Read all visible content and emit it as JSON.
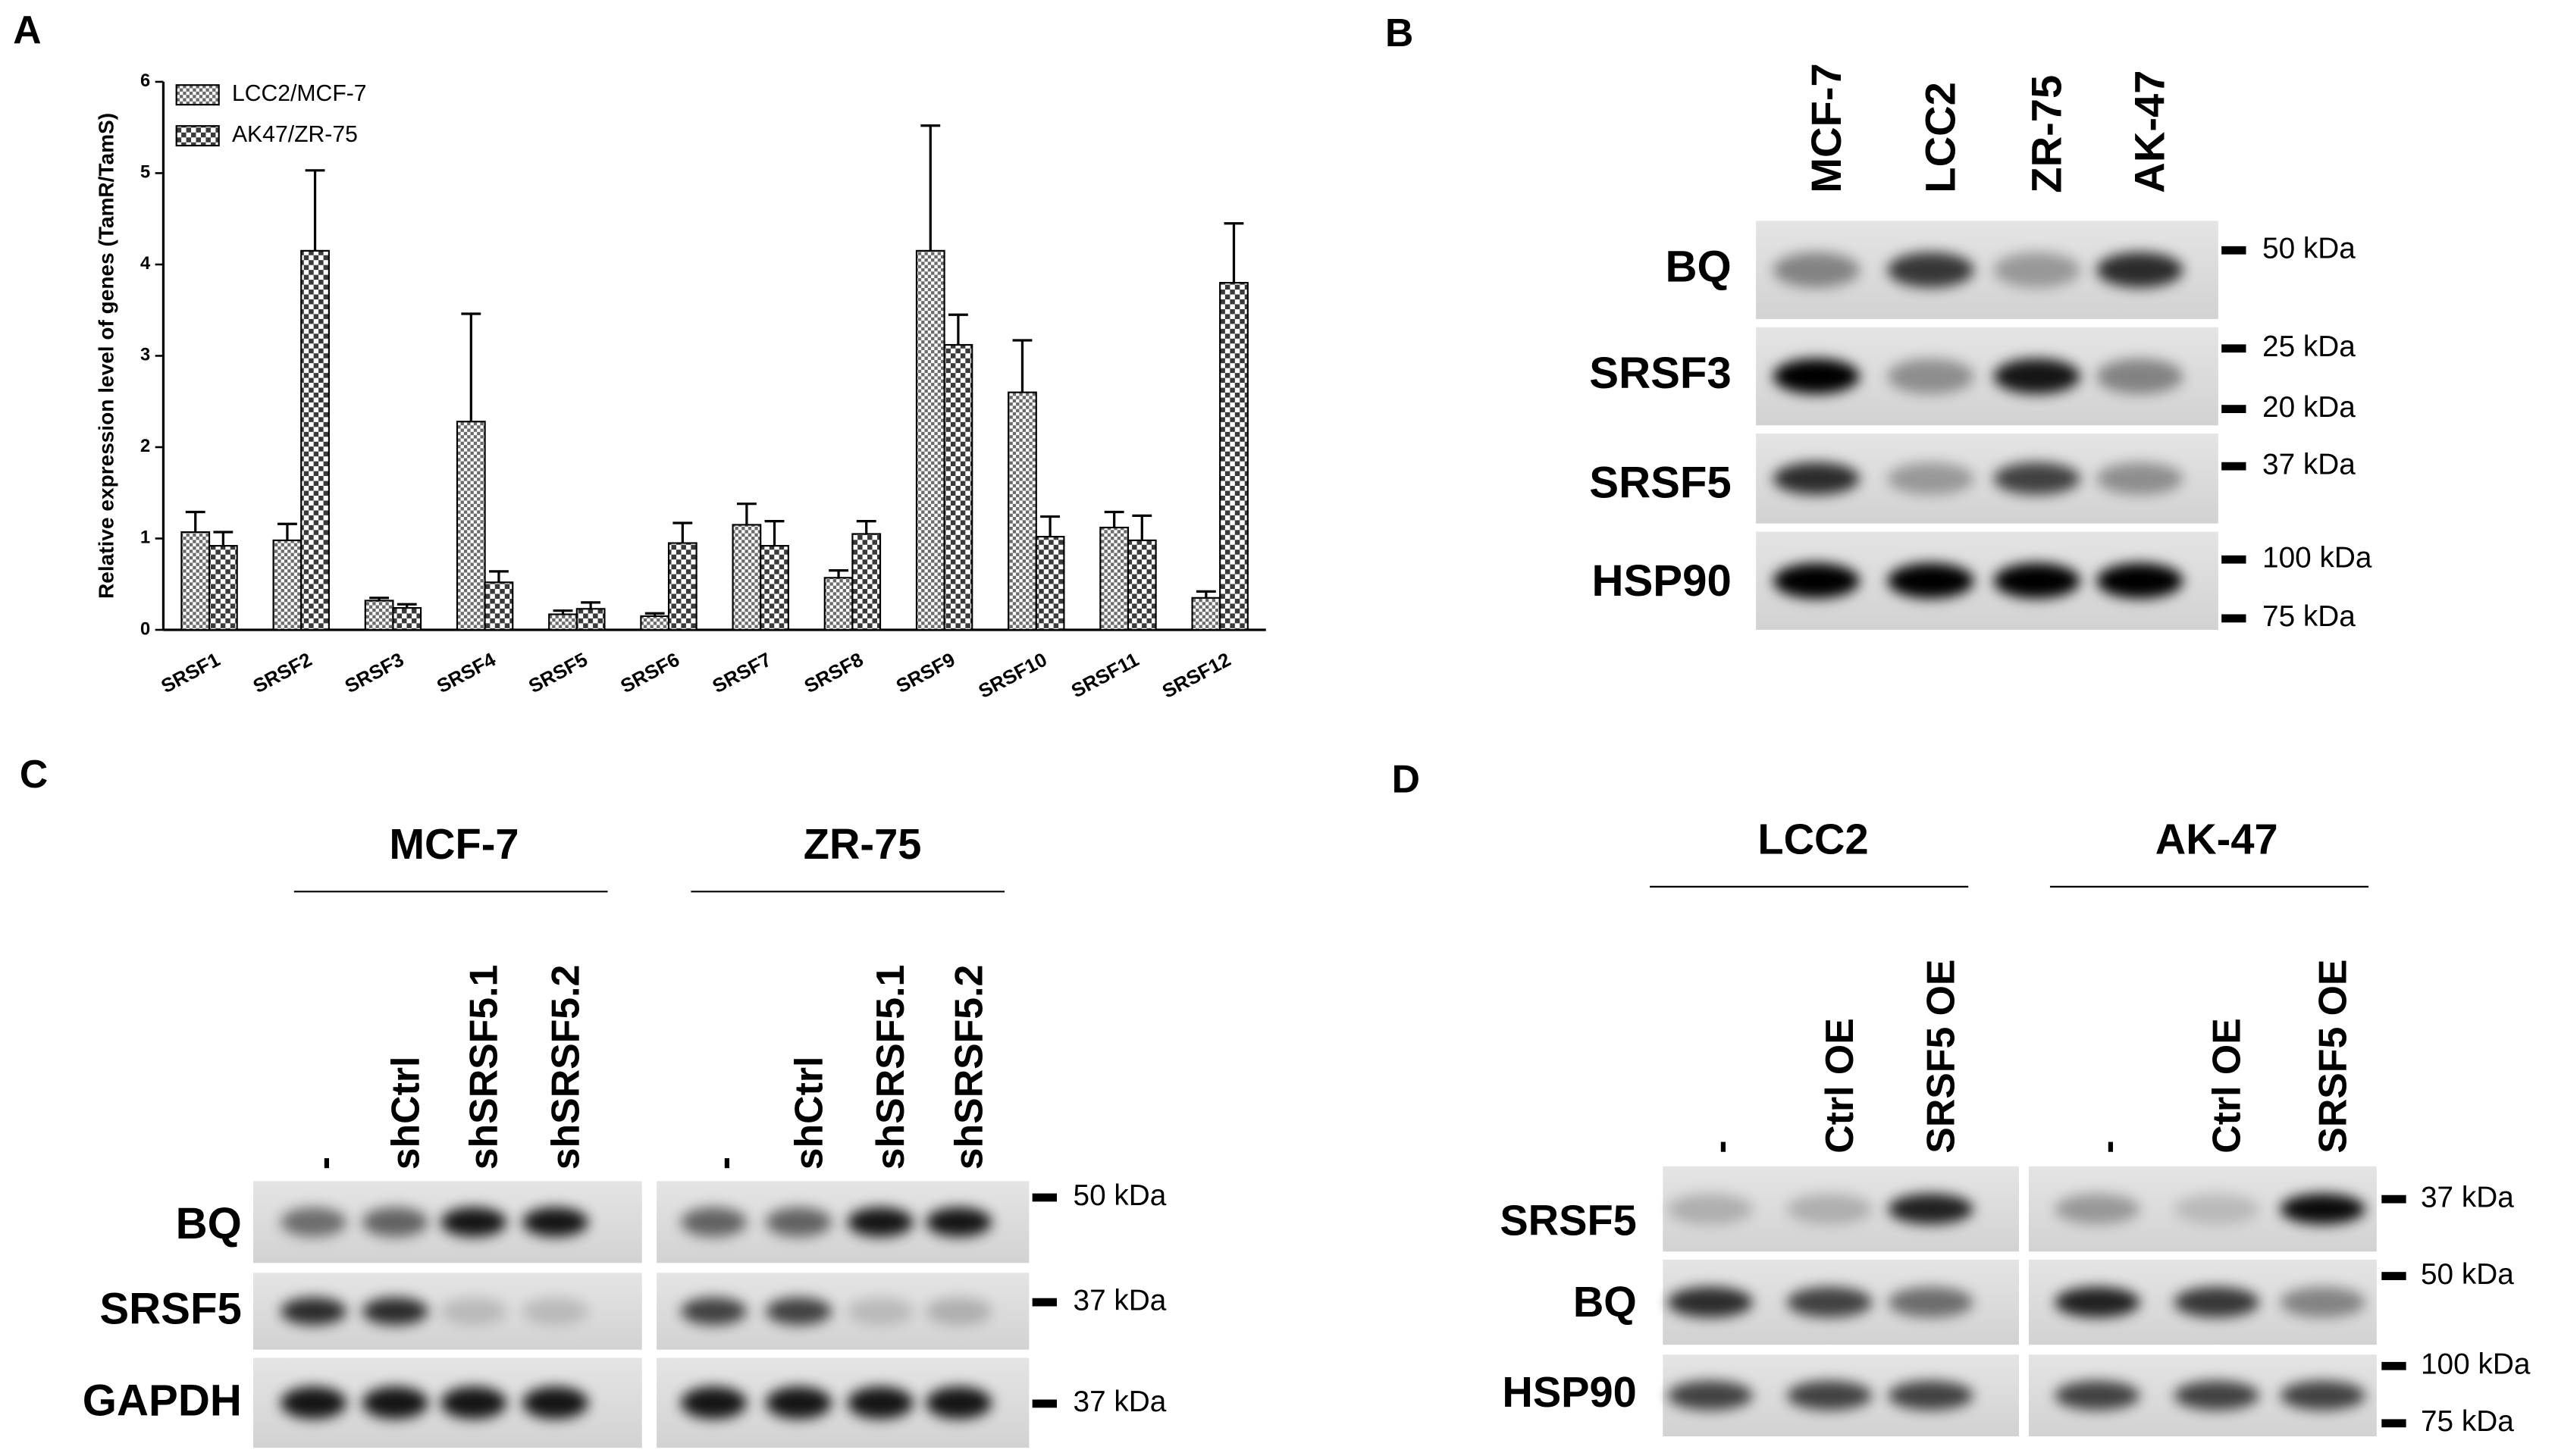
{
  "chart_data": {
    "type": "bar",
    "panel_label": "A",
    "y_label": "Relative expression level of genes (TamR/TamS)",
    "categories": [
      "SRSF1",
      "SRSF2",
      "SRSF3",
      "SRSF4",
      "SRSF5",
      "SRSF6",
      "SRSF7",
      "SRSF8",
      "SRSF9",
      "SRSF10",
      "SRSF11",
      "SRSF12"
    ],
    "series": [
      {
        "name": "LCC2/MCF-7",
        "color": "#6a6a6a",
        "values": [
          1.07,
          0.98,
          0.32,
          2.28,
          0.17,
          0.15,
          1.15,
          0.57,
          4.15,
          2.6,
          1.12,
          0.35
        ],
        "errors": [
          0.22,
          0.18,
          0.03,
          1.18,
          0.04,
          0.03,
          0.23,
          0.08,
          1.37,
          0.57,
          0.17,
          0.07
        ]
      },
      {
        "name": "AK47/ZR-75",
        "color": "#3a3a3a",
        "values": [
          0.92,
          4.15,
          0.24,
          0.52,
          0.23,
          0.95,
          0.92,
          1.05,
          3.12,
          1.02,
          0.98,
          3.8
        ],
        "errors": [
          0.15,
          0.88,
          0.04,
          0.12,
          0.07,
          0.22,
          0.27,
          0.14,
          0.33,
          0.22,
          0.27,
          0.65
        ]
      }
    ],
    "ylim": [
      0,
      6
    ],
    "yticks": [
      0,
      1,
      2,
      3,
      4,
      5,
      6
    ]
  },
  "blots": [
    {
      "panel_label": "B",
      "lanes": [
        "MCF-7",
        "LCC2",
        "ZR-75",
        "AK-47"
      ],
      "rows": [
        "BQ",
        "SRSF3",
        "SRSF5",
        "HSP90"
      ],
      "markers": [
        "50 kDa",
        "25 kDa",
        "20 kDa",
        "37 kDa",
        "100 kDa",
        "75 kDa"
      ]
    },
    {
      "panel_label": "C",
      "groups": [
        "MCF-7",
        "ZR-75"
      ],
      "lanes": [
        "-",
        "shCtrl",
        "shSRSF5.1",
        "shSRSF5.2",
        "-",
        "shCtrl",
        "shSRSF5.1",
        "shSRSF5.2"
      ],
      "rows": [
        "BQ",
        "SRSF5",
        "GAPDH"
      ],
      "markers": [
        "50 kDa",
        "37 kDa",
        "37 kDa"
      ]
    },
    {
      "panel_label": "D",
      "groups": [
        "LCC2",
        "AK-47"
      ],
      "lanes": [
        "-",
        "Ctrl OE",
        "SRSF5 OE",
        "-",
        "Ctrl OE",
        "SRSF5 OE"
      ],
      "rows": [
        "SRSF5",
        "BQ",
        "HSP90"
      ],
      "markers": [
        "37 kDa",
        "50 kDa",
        "100 kDa",
        "75 kDa"
      ]
    }
  ]
}
